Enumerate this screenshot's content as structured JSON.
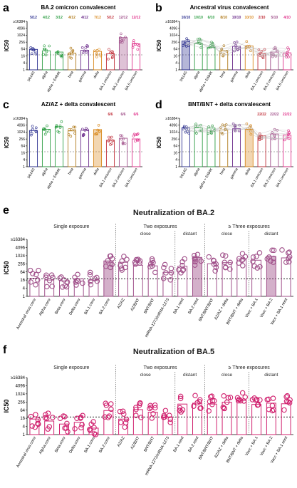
{
  "figure": {
    "panel_letters": [
      "a",
      "b",
      "c",
      "d",
      "e",
      "f"
    ],
    "tick_labels": [
      "≥16384",
      "4096",
      "1024",
      "256",
      "64",
      "16",
      "4",
      "1"
    ],
    "ylabel": "IC50"
  },
  "chart_data": [
    {
      "panel": "a",
      "type": "bar",
      "title": "BA.2 omicron convalescent",
      "ylabel": "IC50",
      "yscale": "log2",
      "ylim": [
        1,
        16384
      ],
      "threshold": 20,
      "categories": [
        "D614G",
        "alpha",
        "alpha + E484K",
        "beta",
        "gamma",
        "delta",
        "BA.1 omicron",
        "BA.2 omicron",
        "BA.5 omicron"
      ],
      "counts": [
        "5/12",
        "4/12",
        "3/12",
        "4/12",
        "4/12",
        "7/12",
        "5/12",
        "12/12",
        "12/12"
      ],
      "values": [
        60,
        45,
        35,
        28,
        50,
        40,
        25,
        640,
        180
      ],
      "colors": [
        "#2b2f8f",
        "#2e9e44",
        "#2e9e44",
        "#b07a1a",
        "#6a2b8a",
        "#d98a1f",
        "#c0303a",
        "#a0508a",
        "#e0308a"
      ],
      "highlight": "BA.2 omicron"
    },
    {
      "panel": "b",
      "type": "bar",
      "title": "Ancestral virus convalescent",
      "ylabel": "IC50",
      "yscale": "log2",
      "ylim": [
        1,
        16384
      ],
      "threshold": 20,
      "categories": [
        "D614G",
        "alpha",
        "alpha + E484K",
        "beta",
        "gamma",
        "delta",
        "BA.1 omicron",
        "BA.2 omicron",
        "BA.5 omicron"
      ],
      "counts": [
        "10/10",
        "10/10",
        "6/10",
        "8/10",
        "10/10",
        "10/10",
        "2/10",
        "5/10",
        "4/10"
      ],
      "values": [
        320,
        200,
        90,
        45,
        110,
        120,
        25,
        35,
        30
      ],
      "colors": [
        "#2b2f8f",
        "#2e9e44",
        "#2e9e44",
        "#b07a1a",
        "#6a2b8a",
        "#d98a1f",
        "#c0303a",
        "#a0508a",
        "#e0308a"
      ],
      "highlight": "D614G"
    },
    {
      "panel": "c",
      "type": "bar",
      "title": "AZ/AZ + delta convalescent",
      "ylabel": "IC50",
      "yscale": "log2",
      "ylim": [
        1,
        16384
      ],
      "threshold": 20,
      "categories": [
        "D614G",
        "alpha",
        "alpha + E484K",
        "beta",
        "gamma",
        "delta",
        "BA.1 omicron",
        "BA.2 omicron",
        "BA.5 omicron"
      ],
      "counts": [
        "",
        "",
        "",
        "",
        "",
        "",
        "6/6",
        "6/6",
        "6/6"
      ],
      "values": [
        1400,
        1800,
        3000,
        1300,
        1500,
        1700,
        200,
        300,
        260
      ],
      "colors": [
        "#2b2f8f",
        "#2e9e44",
        "#2e9e44",
        "#b07a1a",
        "#6a2b8a",
        "#d98a1f",
        "#c0303a",
        "#a0508a",
        "#e0308a"
      ],
      "highlight": "delta"
    },
    {
      "panel": "d",
      "type": "bar",
      "title": "BNT/BNT + delta convalescent",
      "ylabel": "IC50",
      "yscale": "log2",
      "ylim": [
        1,
        16384
      ],
      "threshold": 20,
      "categories": [
        "D614G",
        "alpha",
        "alpha + E484K",
        "beta",
        "gamma",
        "delta",
        "BA.1 omicron",
        "BA.2 omicron",
        "BA.5 omicron"
      ],
      "counts": [
        "",
        "",
        "",
        "",
        "",
        "",
        "22/22",
        "22/22",
        "22/22"
      ],
      "values": [
        2500,
        2400,
        2300,
        1600,
        2000,
        1800,
        480,
        700,
        560
      ],
      "colors": [
        "#2b2f8f",
        "#2e9e44",
        "#2e9e44",
        "#b07a1a",
        "#6a2b8a",
        "#d98a1f",
        "#c0303a",
        "#a0508a",
        "#e0308a"
      ],
      "highlight": "delta"
    },
    {
      "panel": "e",
      "type": "bar",
      "title": "Neutralization of BA.2",
      "ylabel": "IC50",
      "yscale": "log2",
      "ylim": [
        1,
        16384
      ],
      "threshold": 20,
      "groups": [
        "Single exposure",
        "Two exposures",
        "≥ Three exposures"
      ],
      "subgroups": [
        "close",
        "distant",
        "close",
        "distant"
      ],
      "categories": [
        "Ancestral virus conv",
        "Alpha conv",
        "Beta conv",
        "Delta conv",
        "BA.1 conv",
        "BA.2 conv",
        "AZ/AZ",
        "AZ/BNT",
        "BNT/BNT",
        "mRNA-1273/mRNA-1273",
        "BA.1 reinf",
        "BA.2 reinf",
        "BNT/BNT/BNT",
        "AZ/AZ + delta",
        "BNT/BNT + delta",
        "Vacc + BA.1",
        "Vacc + BA.2",
        "Vacc + BA.1 reinf"
      ],
      "values": [
        22,
        16,
        14,
        20,
        16,
        420,
        330,
        200,
        180,
        60,
        170,
        760,
        260,
        310,
        580,
        470,
        900,
        700
      ],
      "color": "#a0508a",
      "highlight": [
        "BA.2 conv",
        "BA.2 reinf",
        "Vacc + BA.2"
      ]
    },
    {
      "panel": "f",
      "type": "bar",
      "title": "Neutralization of BA.5",
      "ylabel": "IC50",
      "yscale": "log2",
      "ylim": [
        1,
        16384
      ],
      "threshold": 20,
      "groups": [
        "Single exposure",
        "Two exposures",
        "≥ Three exposures"
      ],
      "subgroups": [
        "close",
        "distant",
        "close",
        "distant"
      ],
      "categories": [
        "Ancestral virus conv",
        "Alpha conv",
        "Beta conv",
        "Delta conv",
        "BA.1 conv",
        "BA.2 conv",
        "AZ/AZ",
        "AZ/BNT",
        "BNT/BNT",
        "mRNA-1273/mRNA-1273",
        "BA.1 reinf",
        "BA.2 reinf",
        "BNT/BNT/BNT",
        "AZ/AZ + delta",
        "BNT/BNT + delta",
        "Vacc + BA.1",
        "Vacc + BA.2",
        "Vacc + BA.1 reinf"
      ],
      "values": [
        14,
        10,
        6,
        8,
        3,
        60,
        14,
        70,
        45,
        20,
        180,
        210,
        180,
        250,
        330,
        170,
        210,
        190
      ],
      "color": "#d0206e",
      "highlight": []
    }
  ]
}
